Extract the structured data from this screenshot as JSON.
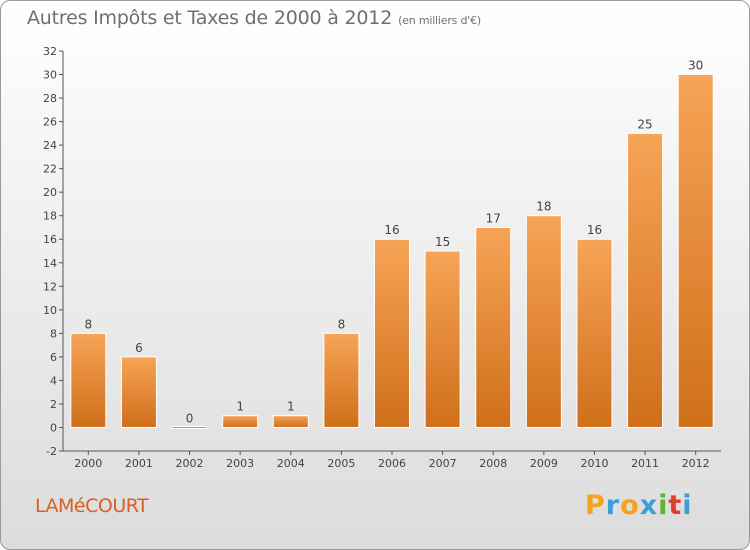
{
  "header": {
    "title": "Autres Impôts et Taxes de 2000 à 2012",
    "subtitle": "(en milliers d'€)"
  },
  "footer": {
    "town": "LAMéCOURT",
    "logo_letters": [
      "P",
      "r",
      "o",
      "x",
      "i",
      "t",
      "i"
    ],
    "logo_colors": [
      "#f7a21b",
      "#3aa0d8",
      "#f7a21b",
      "#3aa0d8",
      "#5db33a",
      "#e03c2e",
      "#3aa0d8"
    ]
  },
  "colors": {
    "bar_top": "#f7a456",
    "bar_bottom": "#cf6f1a",
    "accent": "#d86020"
  },
  "chart_data": {
    "type": "bar",
    "title": "Autres Impôts et Taxes de 2000 à 2012",
    "subtitle": "(en milliers d'€)",
    "categories": [
      "2000",
      "2001",
      "2002",
      "2003",
      "2004",
      "2005",
      "2006",
      "2007",
      "2008",
      "2009",
      "2010",
      "2011",
      "2012"
    ],
    "values": [
      8,
      6,
      0,
      1,
      1,
      8,
      16,
      15,
      17,
      18,
      16,
      25,
      30
    ],
    "ylim": [
      -2,
      32
    ],
    "yticks": [
      -2,
      0,
      2,
      4,
      6,
      8,
      10,
      12,
      14,
      16,
      18,
      20,
      22,
      24,
      26,
      28,
      30,
      32
    ],
    "grid": false
  }
}
